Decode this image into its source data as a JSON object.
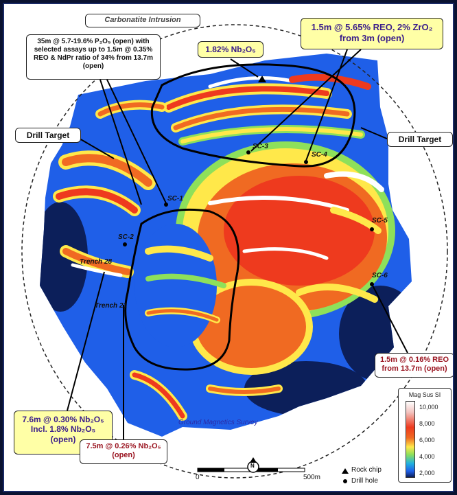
{
  "intrusion_label": "Carbonatite Intrusion",
  "survey_label": "Ground Magnetics Survey",
  "drill_target_left": "Drill Target",
  "drill_target_right": "Drill Target",
  "callouts": {
    "p2o5": "35m @ 5.7-19.6% P₂O₅ (open) with selected assays up to 1.5m @ 0.35% REO & NdPr ratio of 34% from 13.7m (open)",
    "nb_rockchip": "1.82% Nb₂O₅",
    "reo_zr": "1.5m @ 5.65% REO, 2% ZrO₂ from 3m (open)",
    "sc6": "1.5m @ 0.16% REO from 13.7m (open)",
    "trench28": "7.6m @ 0.30% Nb₂O₅ Incl. 1.8% Nb₂O₅ (open)",
    "trench21": "7.5m @ 0.26% Nb₂O₅ (open)"
  },
  "drill_holes": [
    "SC-1",
    "SC-2",
    "SC-3",
    "SC-4",
    "SC-5",
    "SC-6"
  ],
  "trenches": [
    "Trench 28",
    "Trench 21"
  ],
  "legend": {
    "title": "Mag Sus SI",
    "ticks": [
      "10,000",
      "8,000",
      "6,000",
      "4,000",
      "2,000"
    ]
  },
  "key": {
    "rock_chip": "Rock chip",
    "drill_hole": "Drill hole"
  },
  "scale": {
    "start": "0",
    "end": "500m"
  },
  "north": "N",
  "colors": {
    "deep_blue": "#0c1f5a",
    "blue": "#1f5fe8",
    "cyan": "#20b0e0",
    "green": "#8ee05a",
    "yellow": "#ffe84a",
    "orange": "#f06a22",
    "red": "#ee3a1e",
    "white_high": "#ffffff",
    "callout_yellow": "#ffffa6",
    "callout_blue_text": "#3a1d8a",
    "callout_red_text": "#9a1420"
  }
}
